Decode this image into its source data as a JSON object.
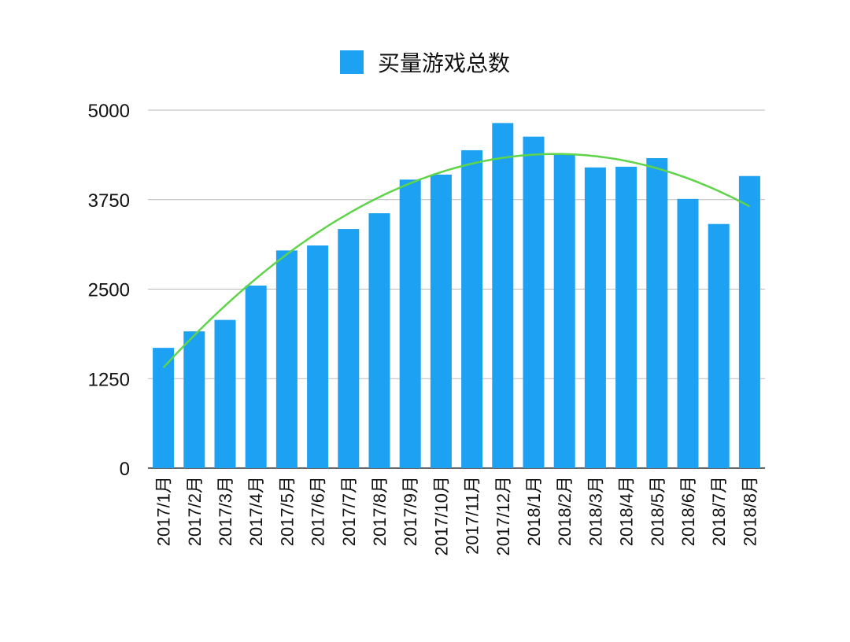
{
  "chart_data": {
    "type": "bar",
    "title": "",
    "xlabel": "",
    "ylabel": "",
    "ylim": [
      0,
      5000
    ],
    "yticks": [
      "0",
      "1250",
      "2500",
      "3750",
      "5000"
    ],
    "ytick_values": [
      0,
      1250,
      2500,
      3750,
      5000
    ],
    "grid": true,
    "legend": {
      "position": "top-center",
      "entries": [
        "买量游戏总数"
      ]
    },
    "categories": [
      "2017/1月",
      "2017/2月",
      "2017/3月",
      "2017/4月",
      "2017/5月",
      "2017/6月",
      "2017/7月",
      "2017/8月",
      "2017/9月",
      "2017/10月",
      "2017/11月",
      "2017/12月",
      "2018/1月",
      "2018/2月",
      "2018/3月",
      "2018/4月",
      "2018/5月",
      "2018/6月",
      "2018/7月",
      "2018/8月"
    ],
    "series": [
      {
        "name": "买量游戏总数",
        "color": "#1da1f2",
        "values": [
          1680,
          1910,
          2070,
          2550,
          3040,
          3110,
          3340,
          3560,
          4030,
          4100,
          4440,
          4820,
          4630,
          4390,
          4200,
          4210,
          4330,
          3760,
          3410,
          4080
        ]
      }
    ],
    "trendline": {
      "type": "polynomial",
      "order": 2,
      "color": "#5fd44a"
    }
  }
}
